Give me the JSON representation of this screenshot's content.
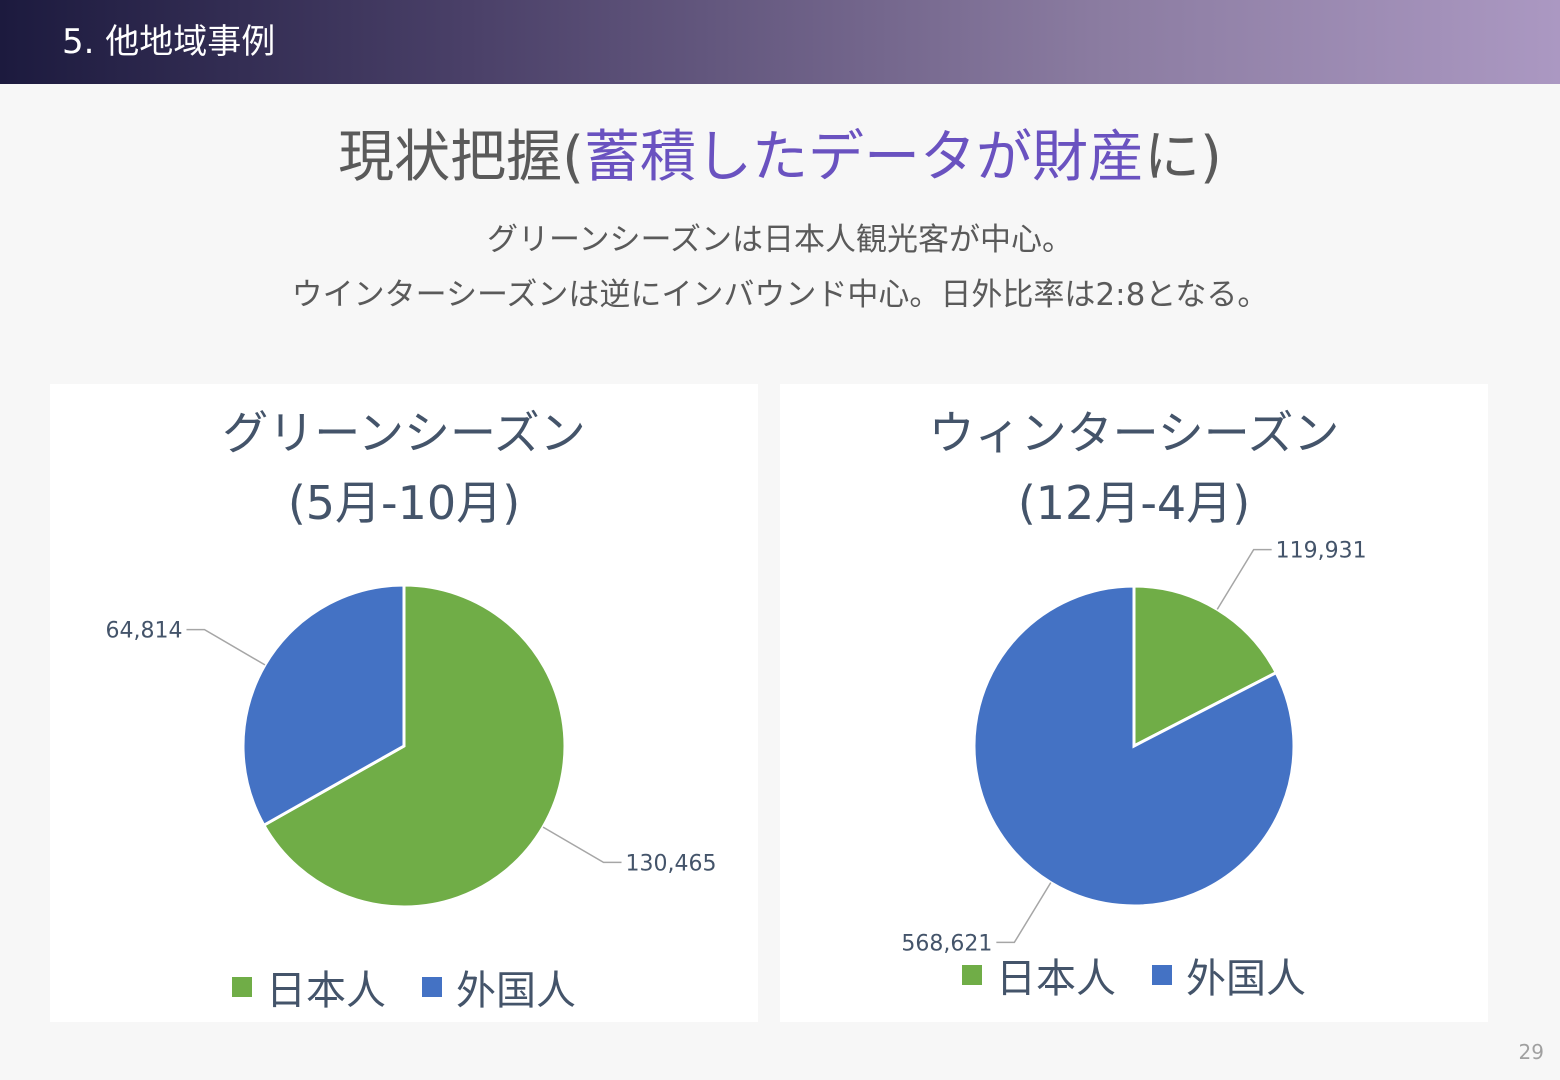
{
  "header": {
    "title": "5. 他地域事例"
  },
  "main_title": {
    "prefix": "現状把握(",
    "accent": "蓄積したデータが財産",
    "suffix": "に)"
  },
  "subtitle": {
    "line1": "グリーンシーズンは日本人観光客が中心。",
    "line2": "ウインターシーズンは逆にインバウンド中心。日外比率は2:8となる。"
  },
  "colors": {
    "japanese": "#70ad47",
    "foreign": "#4472c4",
    "accent": "#6a52c0",
    "text": "#44546a"
  },
  "chart_data": [
    {
      "type": "pie",
      "title_line1": "グリーンシーズン",
      "title_line2": "(5月-10月)",
      "categories": [
        "日本人",
        "外国人"
      ],
      "values": [
        130465,
        64814
      ],
      "value_labels": [
        "130,465",
        "64,814"
      ],
      "colors": [
        "#70ad47",
        "#4472c4"
      ],
      "legend": "bottom"
    },
    {
      "type": "pie",
      "title_line1": "ウィンターシーズン",
      "title_line2": "(12月-4月)",
      "categories": [
        "日本人",
        "外国人"
      ],
      "values": [
        119931,
        568621
      ],
      "value_labels": [
        "119,931",
        "568,621"
      ],
      "colors": [
        "#70ad47",
        "#4472c4"
      ],
      "legend": "bottom"
    }
  ],
  "page_number": "29"
}
